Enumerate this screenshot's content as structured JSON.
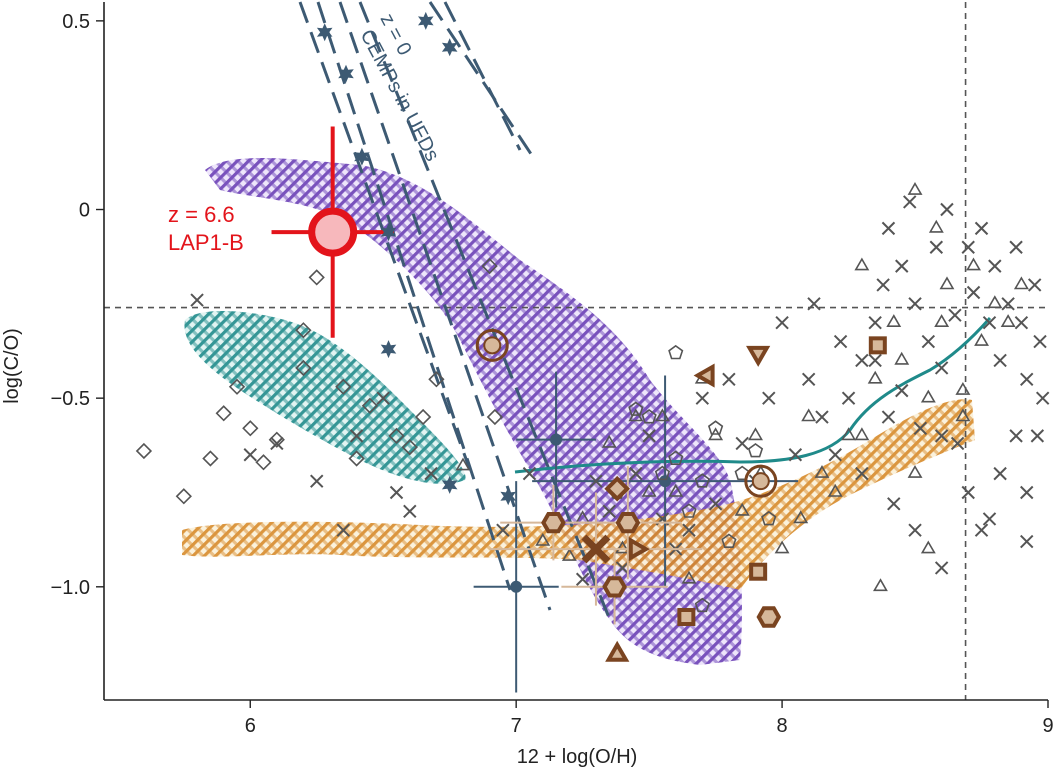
{
  "chart_data": {
    "type": "scatter",
    "xlabel": "12 + log(O/H)",
    "ylabel": "log(C/O)",
    "xlim": [
      5.45,
      9.0
    ],
    "ylim": [
      -1.3,
      0.55
    ],
    "xticks": [
      6,
      7,
      8,
      9
    ],
    "yticks": [
      0.5,
      0,
      -0.5,
      -1.0
    ],
    "xtick_labels": [
      "6",
      "7",
      "8",
      "9"
    ],
    "ytick_labels": [
      "0.5",
      "0",
      "−0.5",
      "−1.0"
    ],
    "reference_lines": {
      "hline_y": -0.26,
      "vline_x": 8.69
    },
    "annotations": {
      "lap1b_z": "z = 6.6",
      "lap1b_name": "LAP1-B",
      "cemp_z": "z = 0",
      "cemp_label": "CEMPs in UFDs"
    },
    "colors": {
      "red": "#e3141b",
      "navy": "#3d5a73",
      "teal": "#1f8a8a",
      "purple": "#6a3fb5",
      "orange": "#d78a2a",
      "brown": "#7a4420",
      "tan": "#d6b89a",
      "gray": "#555555"
    },
    "series": [
      {
        "marker": "circle-big",
        "points": [
          [
            6.31,
            -0.06
          ]
        ],
        "xerr": [
          0.23
        ],
        "yerr": [
          0.28
        ]
      },
      {
        "marker": "circle-small",
        "points": [
          [
            7.15,
            -0.61
          ],
          [
            7.56,
            -0.72
          ],
          [
            7.0,
            -1.0
          ]
        ],
        "xerr": [
          0.15,
          0.5,
          0.16
        ],
        "yerr": [
          0.18,
          0.28,
          0.28
        ]
      },
      {
        "marker": "star",
        "points": [
          [
            6.28,
            0.47
          ],
          [
            6.36,
            0.36
          ],
          [
            6.42,
            0.14
          ],
          [
            6.52,
            -0.06
          ],
          [
            6.52,
            -0.37
          ],
          [
            6.66,
            0.5
          ],
          [
            6.75,
            0.43
          ],
          [
            6.75,
            -0.73
          ],
          [
            6.97,
            -0.76
          ]
        ]
      },
      {
        "marker": "triangle-gray",
        "points": [
          [
            6.8,
            -0.68
          ],
          [
            7.1,
            -0.88
          ],
          [
            7.2,
            -0.92
          ],
          [
            7.35,
            -0.62
          ],
          [
            7.45,
            -0.55
          ],
          [
            7.6,
            -0.75
          ],
          [
            7.75,
            -0.6
          ],
          [
            7.85,
            -0.8
          ],
          [
            7.92,
            -0.7
          ],
          [
            8.0,
            -0.9
          ],
          [
            8.1,
            -0.55
          ],
          [
            8.2,
            -0.75
          ],
          [
            8.3,
            -0.6
          ],
          [
            8.35,
            -0.45
          ],
          [
            8.45,
            -0.4
          ],
          [
            8.5,
            -0.7
          ],
          [
            8.55,
            -0.5
          ],
          [
            8.6,
            -0.3
          ],
          [
            8.62,
            -0.2
          ],
          [
            8.68,
            -0.48
          ],
          [
            8.72,
            -0.15
          ],
          [
            8.75,
            -0.35
          ],
          [
            8.8,
            -0.25
          ],
          [
            8.85,
            -0.3
          ],
          [
            8.9,
            -0.2
          ],
          [
            8.3,
            -0.15
          ],
          [
            8.42,
            -0.3
          ],
          [
            8.15,
            -0.7
          ],
          [
            7.9,
            -0.6
          ],
          [
            7.7,
            -0.45
          ],
          [
            7.5,
            -0.75
          ],
          [
            7.65,
            -0.98
          ],
          [
            8.07,
            -0.82
          ],
          [
            8.37,
            -1.0
          ],
          [
            8.55,
            -0.9
          ],
          [
            7.4,
            -0.9
          ],
          [
            7.25,
            -0.82
          ],
          [
            7.55,
            -0.55
          ],
          [
            8.25,
            -0.6
          ],
          [
            8.5,
            0.05
          ],
          [
            8.58,
            -0.05
          ],
          [
            8.68,
            -0.55
          ]
        ]
      },
      {
        "marker": "cross-gray",
        "points": [
          [
            5.8,
            -0.24
          ],
          [
            6.0,
            -0.65
          ],
          [
            6.1,
            -0.62
          ],
          [
            6.25,
            -0.72
          ],
          [
            6.35,
            -0.85
          ],
          [
            6.4,
            -0.6
          ],
          [
            6.5,
            -0.5
          ],
          [
            6.55,
            -0.75
          ],
          [
            6.6,
            -0.8
          ],
          [
            6.68,
            -0.7
          ],
          [
            6.95,
            -0.85
          ],
          [
            7.05,
            -0.7
          ],
          [
            8.2,
            -0.65
          ],
          [
            8.25,
            -0.5
          ],
          [
            8.3,
            -0.4
          ],
          [
            8.35,
            -0.3
          ],
          [
            8.38,
            -0.2
          ],
          [
            8.4,
            -0.05
          ],
          [
            8.45,
            -0.15
          ],
          [
            8.48,
            0.02
          ],
          [
            8.5,
            -0.25
          ],
          [
            8.55,
            -0.35
          ],
          [
            8.58,
            -0.1
          ],
          [
            8.6,
            -0.42
          ],
          [
            8.62,
            0.0
          ],
          [
            8.65,
            -0.28
          ],
          [
            8.7,
            -0.1
          ],
          [
            8.72,
            -0.22
          ],
          [
            8.75,
            -0.05
          ],
          [
            8.78,
            -0.3
          ],
          [
            8.8,
            -0.15
          ],
          [
            8.82,
            -0.4
          ],
          [
            8.85,
            -0.25
          ],
          [
            8.88,
            -0.1
          ],
          [
            8.9,
            -0.3
          ],
          [
            8.92,
            -0.45
          ],
          [
            8.95,
            -0.2
          ],
          [
            8.97,
            -0.35
          ],
          [
            8.98,
            -0.5
          ],
          [
            8.6,
            -0.6
          ],
          [
            8.7,
            -0.75
          ],
          [
            8.75,
            -0.85
          ],
          [
            8.82,
            -0.7
          ],
          [
            8.88,
            -0.6
          ],
          [
            8.92,
            -0.75
          ],
          [
            8.96,
            -0.6
          ],
          [
            8.5,
            -0.85
          ],
          [
            8.6,
            -0.95
          ],
          [
            8.4,
            -0.55
          ],
          [
            8.3,
            -0.7
          ],
          [
            8.15,
            -0.55
          ],
          [
            8.1,
            -0.45
          ],
          [
            8.05,
            -0.65
          ],
          [
            7.95,
            -0.5
          ],
          [
            7.9,
            -0.72
          ],
          [
            7.85,
            -0.62
          ],
          [
            7.8,
            -0.45
          ],
          [
            7.75,
            -0.78
          ],
          [
            7.7,
            -0.5
          ],
          [
            7.65,
            -0.85
          ],
          [
            7.6,
            -0.9
          ],
          [
            7.55,
            -0.82
          ],
          [
            7.5,
            -0.6
          ],
          [
            7.45,
            -0.7
          ],
          [
            7.4,
            -0.95
          ],
          [
            7.35,
            -0.8
          ],
          [
            7.3,
            -0.72
          ],
          [
            7.25,
            -0.98
          ],
          [
            8.0,
            -0.3
          ],
          [
            8.12,
            -0.25
          ],
          [
            8.22,
            -0.35
          ],
          [
            8.35,
            -0.4
          ],
          [
            8.45,
            -0.48
          ],
          [
            8.78,
            -0.82
          ],
          [
            8.92,
            -0.88
          ],
          [
            8.66,
            -0.62
          ],
          [
            8.52,
            -0.58
          ],
          [
            8.42,
            -0.78
          ]
        ]
      },
      {
        "marker": "diamond-gray",
        "points": [
          [
            5.6,
            -0.64
          ],
          [
            5.9,
            -0.54
          ],
          [
            6.0,
            -0.58
          ],
          [
            6.05,
            -0.67
          ],
          [
            6.1,
            -0.61
          ],
          [
            6.2,
            -0.32
          ],
          [
            6.25,
            -0.18
          ],
          [
            6.35,
            -0.47
          ],
          [
            6.45,
            -0.52
          ],
          [
            6.55,
            -0.6
          ],
          [
            6.6,
            -0.63
          ],
          [
            6.65,
            -0.55
          ],
          [
            6.7,
            -0.45
          ],
          [
            6.9,
            -0.15
          ],
          [
            6.92,
            -0.55
          ],
          [
            5.75,
            -0.76
          ],
          [
            5.85,
            -0.66
          ],
          [
            5.95,
            -0.47
          ],
          [
            6.2,
            -0.42
          ],
          [
            6.4,
            -0.66
          ]
        ]
      },
      {
        "marker": "pentagon-gray",
        "points": [
          [
            7.45,
            -0.53
          ],
          [
            7.55,
            -0.7
          ],
          [
            7.6,
            -0.66
          ],
          [
            7.7,
            -0.72
          ],
          [
            7.75,
            -0.58
          ],
          [
            7.85,
            -0.7
          ],
          [
            7.8,
            -0.88
          ],
          [
            7.7,
            -1.05
          ],
          [
            7.5,
            -0.55
          ],
          [
            7.65,
            -0.8
          ],
          [
            7.38,
            -0.75
          ],
          [
            7.6,
            -0.38
          ],
          [
            7.9,
            -0.64
          ],
          [
            7.95,
            -0.82
          ]
        ]
      },
      {
        "marker": "circle-ring-brown",
        "points": [
          [
            6.91,
            -0.36
          ],
          [
            7.92,
            -0.72
          ]
        ]
      },
      {
        "marker": "hexagon-brown",
        "points": [
          [
            7.14,
            -0.83
          ],
          [
            7.37,
            -1.0
          ],
          [
            7.42,
            -0.83
          ],
          [
            7.95,
            -1.08
          ]
        ],
        "xerr": [
          0.2,
          0.2,
          0.2,
          0.0
        ],
        "yerr": [
          0.1,
          0.1,
          0.15,
          0.0
        ]
      },
      {
        "marker": "diamond-brown",
        "points": [
          [
            7.38,
            -0.74
          ]
        ]
      },
      {
        "marker": "cross-brown",
        "points": [
          [
            7.3,
            -0.9
          ]
        ],
        "xerr": [
          0.4
        ],
        "yerr": [
          0.15
        ]
      },
      {
        "marker": "triangle-right-brown",
        "points": [
          [
            7.45,
            -0.9
          ]
        ]
      },
      {
        "marker": "triangle-left-brown",
        "points": [
          [
            7.72,
            -0.44
          ]
        ]
      },
      {
        "marker": "triangle-down-brown",
        "points": [
          [
            7.91,
            -0.38
          ]
        ]
      },
      {
        "marker": "triangle-up-brown",
        "points": [
          [
            7.38,
            -1.18
          ]
        ]
      },
      {
        "marker": "square-brown",
        "points": [
          [
            7.64,
            -1.08
          ],
          [
            7.91,
            -0.96
          ],
          [
            8.36,
            -0.36
          ]
        ]
      }
    ]
  }
}
